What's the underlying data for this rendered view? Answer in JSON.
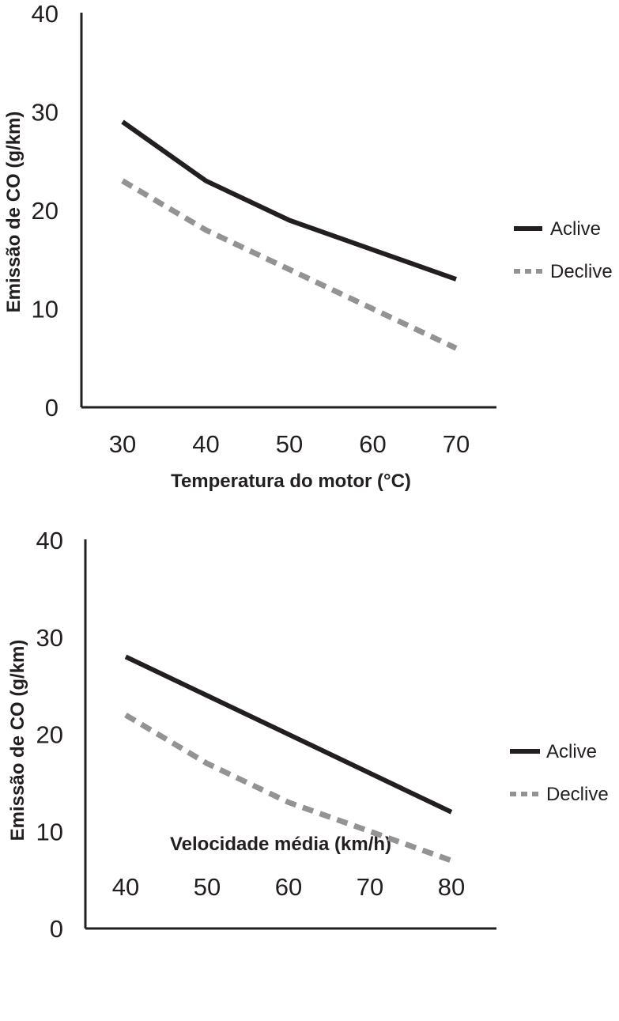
{
  "chart_data": [
    {
      "type": "line",
      "xlabel": "Temperatura do motor (°C)",
      "ylabel": "Emissão de CO (g/km)",
      "x": [
        30,
        40,
        50,
        60,
        70
      ],
      "ylim": [
        0,
        40
      ],
      "yticks": [
        0,
        10,
        20,
        30,
        40
      ],
      "grid": false,
      "legend_position": "right",
      "series": [
        {
          "name": "Aclive",
          "values": [
            29,
            23,
            19,
            16,
            13
          ],
          "color": "#231f20",
          "style": "solid"
        },
        {
          "name": "Declive",
          "values": [
            23,
            18,
            14,
            10,
            6
          ],
          "color": "#939393",
          "style": "dashed"
        }
      ]
    },
    {
      "type": "line",
      "xlabel": "Velocidade média (km/h)",
      "ylabel": "Emissão de CO (g/km)",
      "x": [
        40,
        50,
        60,
        70,
        80
      ],
      "ylim": [
        0,
        40
      ],
      "yticks": [
        0,
        10,
        20,
        30,
        40
      ],
      "grid": false,
      "legend_position": "right",
      "series": [
        {
          "name": "Aclive",
          "values": [
            28,
            24,
            20,
            16,
            12
          ],
          "color": "#231f20",
          "style": "solid"
        },
        {
          "name": "Declive",
          "values": [
            22,
            17,
            13,
            10,
            7
          ],
          "color": "#939393",
          "style": "dashed"
        }
      ]
    }
  ]
}
